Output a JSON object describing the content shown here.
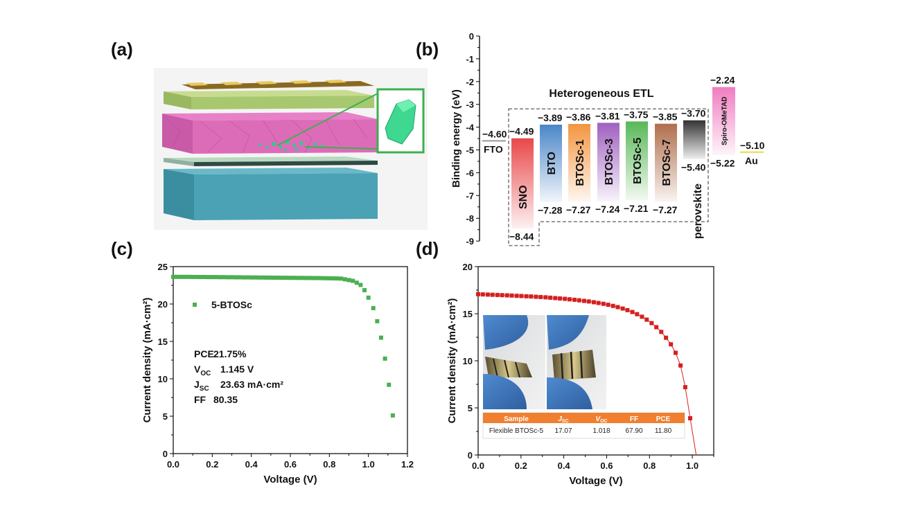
{
  "panels": {
    "a": "(a)",
    "b": "(b)",
    "c": "(c)",
    "d": "(d)"
  },
  "chart_data": [
    {
      "panel": "b",
      "type": "bar",
      "ylabel": "Binding energy (eV)",
      "ylim": [
        -9,
        0
      ],
      "yticks": [
        "0",
        "-1",
        "-2",
        "-3",
        "-4",
        "-5",
        "-6",
        "-7",
        "-8",
        "-9"
      ],
      "group_label": "Heterogeneous ETL",
      "bars": [
        {
          "name": "SNO",
          "top": -4.49,
          "bottom": -8.44,
          "top_label": "-4.49",
          "bottom_label": "-8.44",
          "color": "#e8484a"
        },
        {
          "name": "BTO",
          "top": -3.89,
          "bottom": -7.28,
          "top_label": "-3.89",
          "bottom_label": "-7.28",
          "color": "#4a86c8"
        },
        {
          "name": "BTOSc-1",
          "top": -3.86,
          "bottom": -7.27,
          "top_label": "-3.86",
          "bottom_label": "-7.27",
          "color": "#f39540"
        },
        {
          "name": "BTOSc-3",
          "top": -3.81,
          "bottom": -7.24,
          "top_label": "-3.81",
          "bottom_label": "-7.24",
          "color": "#a060c0"
        },
        {
          "name": "BTOSc-5",
          "top": -3.75,
          "bottom": -7.21,
          "top_label": "-3.75",
          "bottom_label": "-7.21",
          "color": "#58b858"
        },
        {
          "name": "BTOSc-7",
          "top": -3.85,
          "bottom": -7.27,
          "top_label": "-3.85",
          "bottom_label": "-7.27",
          "color": "#b06e4c"
        },
        {
          "name": "perovskite",
          "top": -3.7,
          "bottom": -5.4,
          "top_label": "-3.70",
          "bottom_label": "-5.40",
          "color": "#333333"
        },
        {
          "name": "Spiro-OMeTAD",
          "top": -2.24,
          "bottom": -5.22,
          "top_label": "-2.24",
          "bottom_label": "-5.22",
          "color": "#f07cc0"
        }
      ],
      "levels": [
        {
          "name": "FTO",
          "value": -4.6,
          "label": "-4.60",
          "color": "#999999"
        },
        {
          "name": "Au",
          "value": -5.1,
          "label": "-5.10",
          "color": "#f0e060"
        }
      ]
    },
    {
      "panel": "c",
      "type": "scatter",
      "xlabel": "Voltage (V)",
      "ylabel": "Current density (mA·cm²)",
      "xlim": [
        0,
        1.2
      ],
      "ylim": [
        0,
        25
      ],
      "xticks": [
        "0.0",
        "0.2",
        "0.4",
        "0.6",
        "0.8",
        "1.0",
        "1.2"
      ],
      "yticks": [
        "0",
        "5",
        "10",
        "15",
        "20",
        "25"
      ],
      "color": "#4caf50",
      "legend": "5-BTOSc",
      "annotations": [
        {
          "k": "PCE",
          "sub": "",
          "v": "21.75%"
        },
        {
          "k": "V",
          "sub": "OC",
          "v": "1.145 V"
        },
        {
          "k": "J",
          "sub": "SC",
          "v": "23.63 mA·cm²"
        },
        {
          "k": "FF",
          "sub": "",
          "v": "80.35"
        }
      ],
      "x": [
        0,
        0.02,
        0.04,
        0.06,
        0.08,
        0.1,
        0.12,
        0.14,
        0.16,
        0.18,
        0.2,
        0.22,
        0.24,
        0.26,
        0.28,
        0.3,
        0.32,
        0.34,
        0.36,
        0.38,
        0.4,
        0.42,
        0.44,
        0.46,
        0.48,
        0.5,
        0.52,
        0.54,
        0.56,
        0.58,
        0.6,
        0.62,
        0.64,
        0.66,
        0.68,
        0.7,
        0.72,
        0.74,
        0.76,
        0.78,
        0.8,
        0.82,
        0.84,
        0.86,
        0.88,
        0.9,
        0.92,
        0.94,
        0.96,
        0.98,
        1.0,
        1.025,
        1.045,
        1.065,
        1.085,
        1.105,
        1.125
      ],
      "y": [
        23.63,
        23.63,
        23.63,
        23.63,
        23.63,
        23.62,
        23.62,
        23.61,
        23.61,
        23.6,
        23.6,
        23.6,
        23.59,
        23.59,
        23.58,
        23.58,
        23.57,
        23.57,
        23.56,
        23.56,
        23.55,
        23.55,
        23.54,
        23.54,
        23.53,
        23.53,
        23.52,
        23.52,
        23.51,
        23.51,
        23.5,
        23.5,
        23.49,
        23.49,
        23.48,
        23.48,
        23.47,
        23.47,
        23.46,
        23.45,
        23.44,
        23.43,
        23.42,
        23.4,
        23.3,
        23.2,
        23.1,
        22.85,
        22.55,
        21.85,
        20.85,
        19.45,
        17.7,
        15.5,
        12.7,
        9.2,
        5.1
      ]
    },
    {
      "panel": "d",
      "type": "scatter",
      "xlabel": "Voltage (V)",
      "ylabel": "Current density (mA·cm²)",
      "xlim": [
        0,
        1.1
      ],
      "ylim": [
        0,
        20
      ],
      "xticks": [
        "0.0",
        "0.2",
        "0.4",
        "0.6",
        "0.8",
        "1.0"
      ],
      "yticks": [
        "0",
        "5",
        "10",
        "15",
        "20"
      ],
      "color": "#d42020",
      "x": [
        0,
        0.022,
        0.045,
        0.067,
        0.09,
        0.112,
        0.135,
        0.157,
        0.18,
        0.202,
        0.225,
        0.247,
        0.27,
        0.292,
        0.315,
        0.337,
        0.36,
        0.382,
        0.405,
        0.427,
        0.45,
        0.472,
        0.495,
        0.517,
        0.54,
        0.562,
        0.585,
        0.607,
        0.63,
        0.652,
        0.675,
        0.697,
        0.72,
        0.742,
        0.765,
        0.787,
        0.81,
        0.832,
        0.855,
        0.877,
        0.9,
        0.922,
        0.945,
        0.967,
        0.99
      ],
      "y": [
        17.07,
        17.05,
        17.03,
        17.01,
        16.99,
        16.97,
        16.95,
        16.93,
        16.9,
        16.88,
        16.85,
        16.83,
        16.8,
        16.77,
        16.74,
        16.7,
        16.66,
        16.62,
        16.58,
        16.53,
        16.48,
        16.42,
        16.36,
        16.3,
        16.22,
        16.14,
        16.05,
        15.95,
        15.83,
        15.7,
        15.55,
        15.38,
        15.18,
        14.95,
        14.68,
        14.37,
        14.0,
        13.57,
        13.07,
        12.45,
        11.75,
        10.85,
        9.5,
        7.2,
        3.9
      ],
      "fit_end": [
        1.018,
        0
      ],
      "inset_table": {
        "header": [
          "Sample",
          "J",
          "V",
          "FF",
          "PCE"
        ],
        "header_sub": [
          "",
          "SC",
          "OC",
          "",
          ""
        ],
        "row": [
          "Flexible BTOSc-5",
          "17.07",
          "1.018",
          "67.90",
          "11.80"
        ],
        "header_color": "#f07f30"
      }
    }
  ]
}
